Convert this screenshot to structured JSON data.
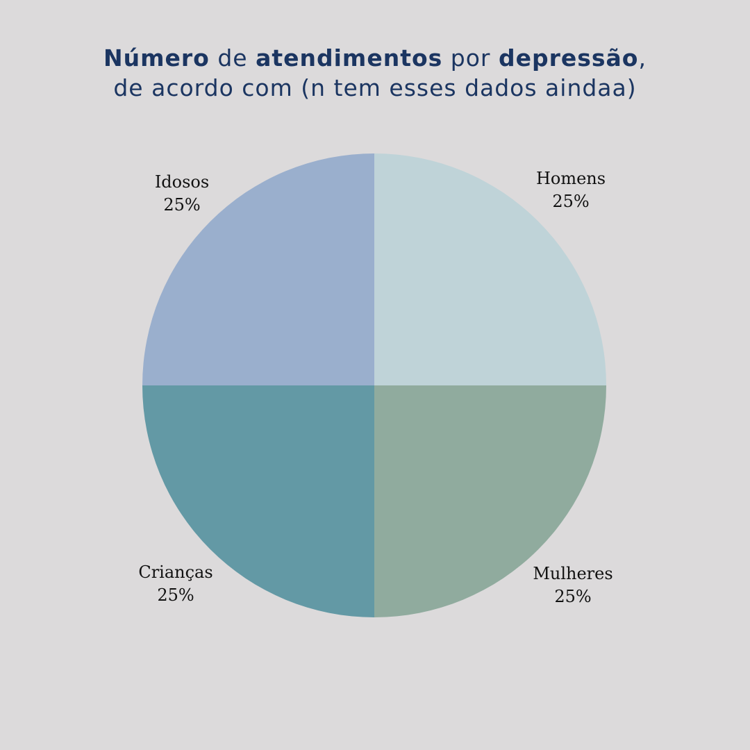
{
  "title_parts": [
    {
      "text": "Número",
      "bold": true
    },
    {
      "text": " de ",
      "bold": false
    },
    {
      "text": "atendimentos",
      "bold": true
    },
    {
      "text": " por ",
      "bold": false
    },
    {
      "text": "depressão",
      "bold": true
    },
    {
      "text": ", de acordo com (n tem esses dados aindaa)",
      "bold": false
    }
  ],
  "chart_data": {
    "type": "pie",
    "title": "Número de atendimentos por depressão, de acordo com (n tem esses dados aindaa)",
    "legend": "none",
    "slices": [
      {
        "label": "Homens",
        "value": 25,
        "display": "25%",
        "color": "#bfd3d8"
      },
      {
        "label": "Mulheres",
        "value": 25,
        "display": "25%",
        "color": "#90ab9e"
      },
      {
        "label": "Crianças",
        "value": 25,
        "display": "25%",
        "color": "#6399a5"
      },
      {
        "label": "Idosos",
        "value": 25,
        "display": "25%",
        "color": "#9aafcd"
      }
    ]
  }
}
